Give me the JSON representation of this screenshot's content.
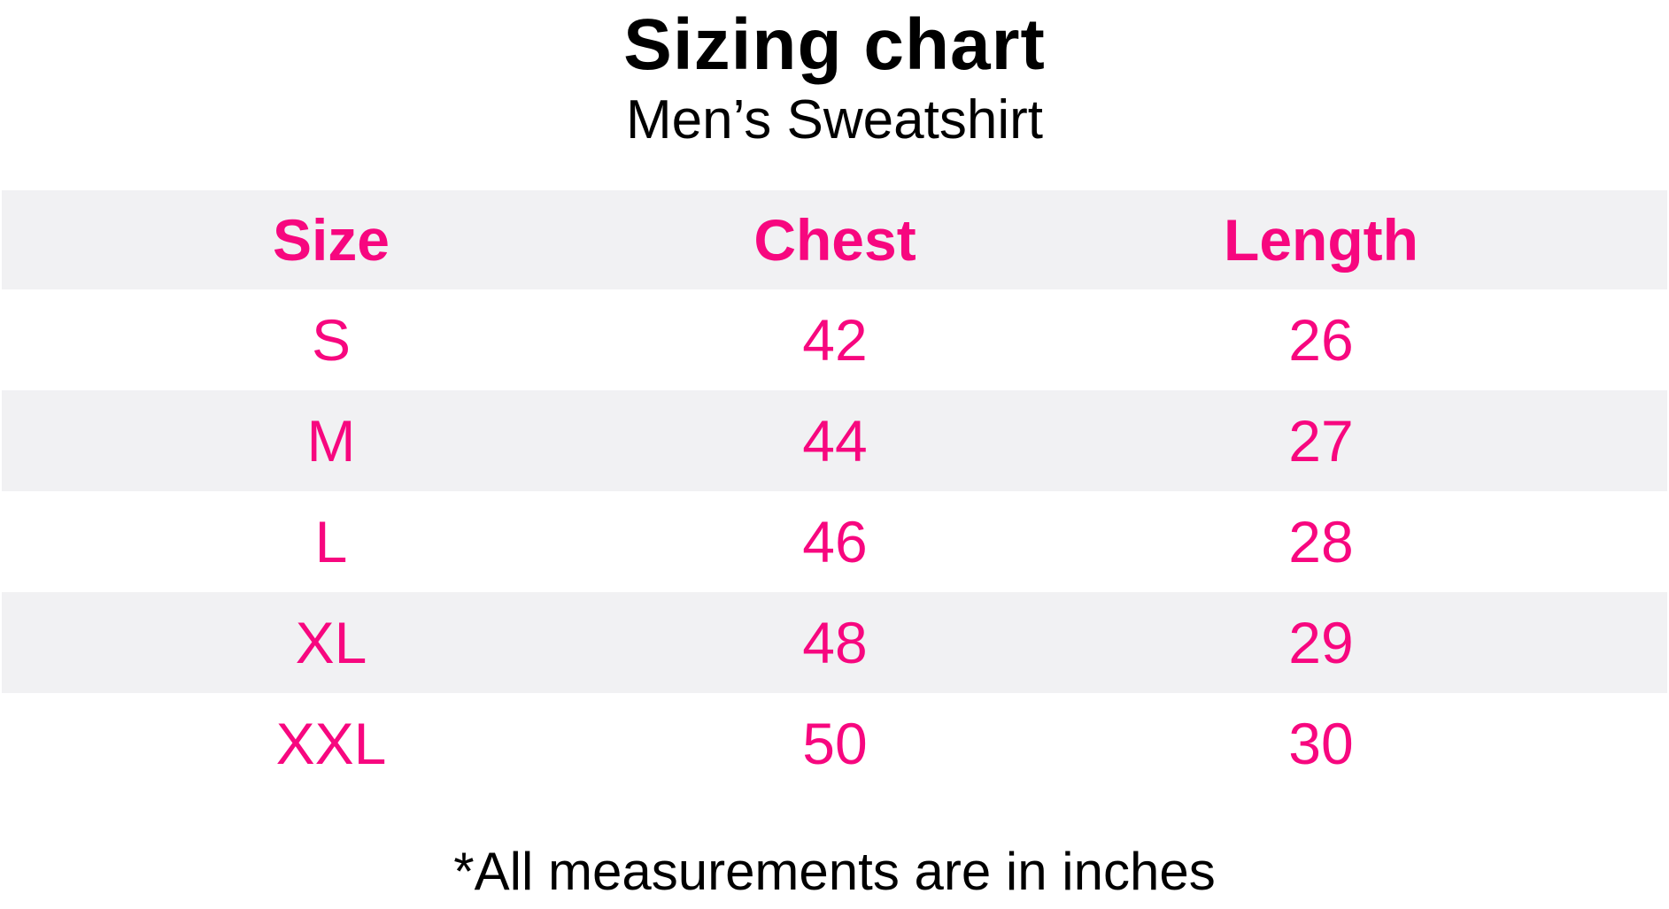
{
  "title": "Sizing chart",
  "subtitle": "Men’s Sweatshirt",
  "colors": {
    "accent": "#f7077f",
    "row_shade": "#f1f1f3",
    "text": "#000000"
  },
  "table": {
    "headers": [
      "Size",
      "Chest",
      "Length"
    ],
    "rows": [
      [
        "S",
        "42",
        "26"
      ],
      [
        "M",
        "44",
        "27"
      ],
      [
        "L",
        "46",
        "28"
      ],
      [
        "XL",
        "48",
        "29"
      ],
      [
        "XXL",
        "50",
        "30"
      ]
    ]
  },
  "footnote": "*All measurements are in inches"
}
